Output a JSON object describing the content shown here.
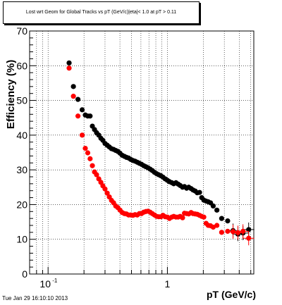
{
  "footer_timestamp": "Tue Jan 29 16:10:10 2013",
  "chart_data": {
    "type": "scatter",
    "title": "Lost wrt Geom for Global Tracks vs pT (GeV/c)|eta|< 1.0 at pT > 0.11",
    "xlabel": "pT (GeV/c)",
    "ylabel": "Efficiency (%)",
    "x_scale": "log",
    "xlim": [
      0.07,
      5.3
    ],
    "ylim": [
      0,
      70
    ],
    "grid": true,
    "x_ticks_major": [
      "10^-1",
      "1"
    ],
    "y_ticks": [
      0,
      10,
      20,
      30,
      40,
      50,
      60,
      70
    ],
    "colors": {
      "series_black": "#000000",
      "series_red": "#ff0000"
    },
    "series": [
      {
        "color": "black",
        "x": [
          0.15,
          0.163,
          0.178,
          0.193,
          0.205,
          0.215,
          0.225,
          0.235,
          0.245,
          0.255,
          0.266,
          0.277,
          0.288,
          0.3,
          0.313,
          0.326,
          0.34,
          0.354,
          0.369,
          0.385,
          0.401,
          0.418,
          0.436,
          0.454,
          0.473,
          0.493,
          0.514,
          0.536,
          0.559,
          0.582,
          0.607,
          0.633,
          0.66,
          0.688,
          0.717,
          0.747,
          0.779,
          0.812,
          0.846,
          0.882,
          0.919,
          0.958,
          0.999,
          1.04,
          1.09,
          1.13,
          1.18,
          1.23,
          1.28,
          1.34,
          1.39,
          1.45,
          1.51,
          1.58,
          1.64,
          1.71,
          1.78,
          1.86,
          1.94,
          2.02,
          2.11,
          2.2,
          2.3,
          2.42,
          2.6,
          2.85,
          3.2,
          3.55,
          3.9,
          4.3,
          4.8
        ],
        "y": [
          60.8,
          54.0,
          50.3,
          47.3,
          45.8,
          45.5,
          45.5,
          42.6,
          41.6,
          40.7,
          40.0,
          39.1,
          38.5,
          37.6,
          37.1,
          36.6,
          36.1,
          35.9,
          35.6,
          35.3,
          34.8,
          34.2,
          33.9,
          33.6,
          33.4,
          33.0,
          32.7,
          32.5,
          32.2,
          31.9,
          31.6,
          31.2,
          30.9,
          30.6,
          30.2,
          29.8,
          29.3,
          28.9,
          28.6,
          28.3,
          27.9,
          27.4,
          27.0,
          26.6,
          26.3,
          26.0,
          26.3,
          25.9,
          25.5,
          25.0,
          25.2,
          24.7,
          25.0,
          24.6,
          24.2,
          23.9,
          23.4,
          23.5,
          22.0,
          21.3,
          21.0,
          20.8,
          20.5,
          19.6,
          18.4,
          16.0,
          15.3,
          12.5,
          11.5,
          11.8,
          12.8
        ]
      },
      {
        "color": "red",
        "x": [
          0.15,
          0.163,
          0.178,
          0.193,
          0.205,
          0.215,
          0.225,
          0.235,
          0.245,
          0.255,
          0.266,
          0.277,
          0.288,
          0.3,
          0.313,
          0.326,
          0.34,
          0.354,
          0.369,
          0.385,
          0.401,
          0.418,
          0.436,
          0.454,
          0.473,
          0.493,
          0.514,
          0.536,
          0.559,
          0.582,
          0.607,
          0.633,
          0.66,
          0.688,
          0.717,
          0.747,
          0.779,
          0.812,
          0.846,
          0.882,
          0.919,
          0.958,
          0.999,
          1.04,
          1.09,
          1.13,
          1.18,
          1.23,
          1.28,
          1.34,
          1.39,
          1.45,
          1.51,
          1.58,
          1.64,
          1.71,
          1.78,
          1.86,
          1.94,
          2.02,
          2.11,
          2.2,
          2.3,
          2.42,
          2.6,
          2.85,
          3.2,
          3.55,
          3.9,
          4.3,
          4.8
        ],
        "y": [
          59.3,
          51.2,
          45.5,
          40.0,
          36.2,
          34.9,
          33.2,
          31.2,
          29.4,
          28.6,
          27.4,
          26.4,
          25.4,
          24.5,
          23.3,
          22.2,
          21.2,
          20.5,
          19.6,
          19.1,
          18.4,
          17.7,
          17.4,
          17.3,
          17.0,
          17.0,
          16.9,
          17.1,
          17.0,
          17.4,
          17.4,
          17.8,
          18.0,
          18.1,
          17.8,
          17.4,
          17.0,
          16.6,
          16.5,
          16.5,
          16.9,
          16.5,
          16.4,
          16.0,
          16.4,
          16.6,
          16.4,
          16.4,
          16.6,
          16.2,
          17.5,
          17.4,
          17.3,
          17.7,
          17.4,
          17.3,
          17.2,
          16.9,
          16.6,
          16.4,
          14.6,
          14.0,
          13.9,
          13.5,
          14.0,
          12.0,
          12.3,
          12.2,
          11.9,
          12.3,
          10.3
        ]
      }
    ]
  }
}
